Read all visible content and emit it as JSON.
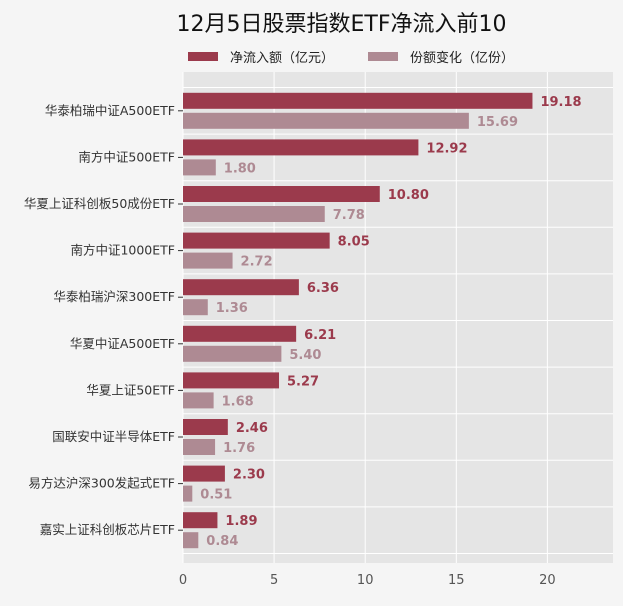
{
  "chart_data": {
    "type": "bar",
    "orientation": "horizontal",
    "title": "12月5日股票指数ETF净流入前10",
    "categories": [
      "华泰柏瑞中证A500ETF",
      "南方中证500ETF",
      "华夏上证科创板50成份ETF",
      "南方中证1000ETF",
      "华泰柏瑞沪深300ETF",
      "华夏中证A500ETF",
      "华夏上证50ETF",
      "国联安中证半导体ETF",
      "易方达沪深300发起式ETF",
      "嘉实上证科创板芯片ETF"
    ],
    "series": [
      {
        "name": "净流入额（亿元）",
        "color": "#9b3a4c",
        "values": [
          19.18,
          12.92,
          10.8,
          8.05,
          6.36,
          6.21,
          5.27,
          2.46,
          2.3,
          1.89
        ]
      },
      {
        "name": "份额变化（亿份）",
        "color": "#ae8a93",
        "values": [
          15.69,
          1.8,
          7.78,
          2.72,
          1.36,
          5.4,
          1.68,
          1.76,
          0.51,
          0.84
        ]
      }
    ],
    "xticks": [
      0,
      5,
      10,
      15,
      20
    ],
    "xlim": [
      0,
      23.6
    ],
    "grid": true,
    "legend": "top",
    "xlabel": "",
    "ylabel": ""
  }
}
